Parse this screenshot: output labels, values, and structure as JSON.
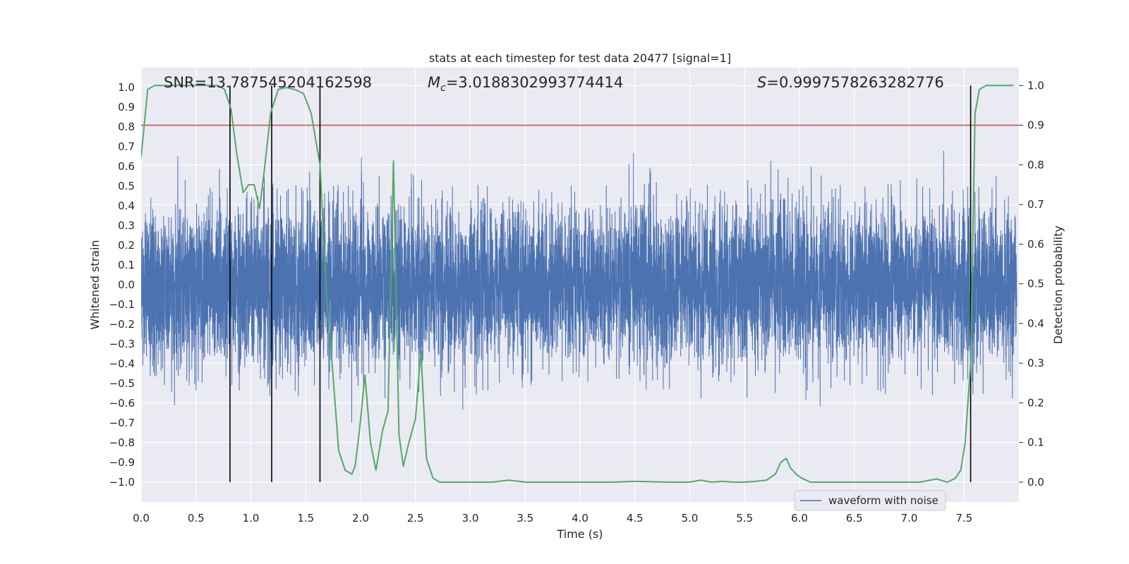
{
  "chart_data": {
    "type": "line",
    "title": "stats at each timestep for test data 20477 [signal=1]",
    "xlabel": "Time (s)",
    "ylabel": "Whitened strain",
    "y2label": "Detection probability",
    "xlim": [
      0.0,
      8.0
    ],
    "ylim": [
      -1.1,
      1.1
    ],
    "y2lim": [
      -0.05,
      1.045
    ],
    "xticks": [
      "0.0",
      "0.5",
      "1.0",
      "1.5",
      "2.0",
      "2.5",
      "3.0",
      "3.5",
      "4.0",
      "4.5",
      "5.0",
      "5.5",
      "6.0",
      "6.5",
      "7.0",
      "7.5"
    ],
    "yticks": [
      "1.0",
      "0.9",
      "0.8",
      "0.7",
      "0.6",
      "0.5",
      "0.4",
      "0.3",
      "0.2",
      "0.1",
      "0.0",
      "−0.1",
      "−0.2",
      "−0.3",
      "−0.4",
      "−0.5",
      "−0.6",
      "−0.7",
      "−0.8",
      "−0.9",
      "−1.0"
    ],
    "y2ticks": [
      "1.0",
      "0.9",
      "0.8",
      "0.7",
      "0.6",
      "0.5",
      "0.4",
      "0.3",
      "0.2",
      "0.1",
      "0.0"
    ],
    "annotations": {
      "snr": "SNR=13.787545204162598",
      "mc_symbol": "M",
      "mc_sub": "c",
      "mc_value": "=3.0188302993774414",
      "s_symbol": "S",
      "s_value": "=0.9997578263282776"
    },
    "threshold": {
      "y2": 0.9,
      "color": "#c44e52"
    },
    "vertical_markers_x": [
      0.81,
      1.19,
      1.63,
      7.56
    ],
    "waveform": {
      "name": "waveform with noise",
      "color": "#4c72b0",
      "samples": 8192,
      "noise_sigma": 0.2,
      "seed": 20477
    },
    "probability_series": {
      "color": "#55a868",
      "x": [
        0.0,
        0.06,
        0.12,
        0.2,
        0.3,
        0.45,
        0.6,
        0.7,
        0.76,
        0.82,
        0.87,
        0.93,
        0.98,
        1.03,
        1.08,
        1.12,
        1.18,
        1.25,
        1.32,
        1.4,
        1.48,
        1.55,
        1.63,
        1.69,
        1.74,
        1.8,
        1.86,
        1.92,
        1.95,
        1.99,
        2.04,
        2.09,
        2.14,
        2.2,
        2.25,
        2.3,
        2.35,
        2.39,
        2.44,
        2.5,
        2.55,
        2.6,
        2.66,
        2.72,
        2.8,
        3.0,
        3.2,
        3.35,
        3.5,
        3.7,
        4.0,
        4.3,
        4.5,
        4.8,
        5.0,
        5.1,
        5.2,
        5.3,
        5.4,
        5.5,
        5.6,
        5.7,
        5.78,
        5.83,
        5.88,
        5.92,
        5.97,
        6.02,
        6.1,
        6.3,
        6.5,
        6.7,
        6.9,
        7.1,
        7.25,
        7.35,
        7.42,
        7.47,
        7.51,
        7.56,
        7.6,
        7.64,
        7.7,
        7.75,
        7.85,
        7.95
      ],
      "values": [
        0.82,
        0.99,
        1.0,
        1.0,
        1.0,
        1.0,
        1.0,
        1.0,
        0.99,
        0.94,
        0.83,
        0.73,
        0.75,
        0.75,
        0.69,
        0.78,
        0.93,
        0.99,
        0.995,
        0.99,
        0.98,
        0.93,
        0.8,
        0.47,
        0.3,
        0.08,
        0.03,
        0.02,
        0.04,
        0.13,
        0.27,
        0.1,
        0.03,
        0.13,
        0.18,
        0.81,
        0.12,
        0.04,
        0.1,
        0.16,
        0.33,
        0.06,
        0.01,
        0.0,
        0.0,
        0.0,
        0.0,
        0.005,
        0.0,
        0.0,
        0.0,
        0.0,
        0.002,
        0.0,
        0.0,
        0.005,
        0.0,
        0.002,
        0.0,
        0.0,
        0.002,
        0.005,
        0.02,
        0.05,
        0.06,
        0.035,
        0.02,
        0.01,
        0.0,
        0.0,
        0.0,
        0.0,
        0.0,
        0.0,
        0.008,
        0.0,
        0.01,
        0.03,
        0.1,
        0.3,
        0.93,
        0.99,
        1.0,
        1.0,
        1.0,
        1.0
      ]
    }
  }
}
